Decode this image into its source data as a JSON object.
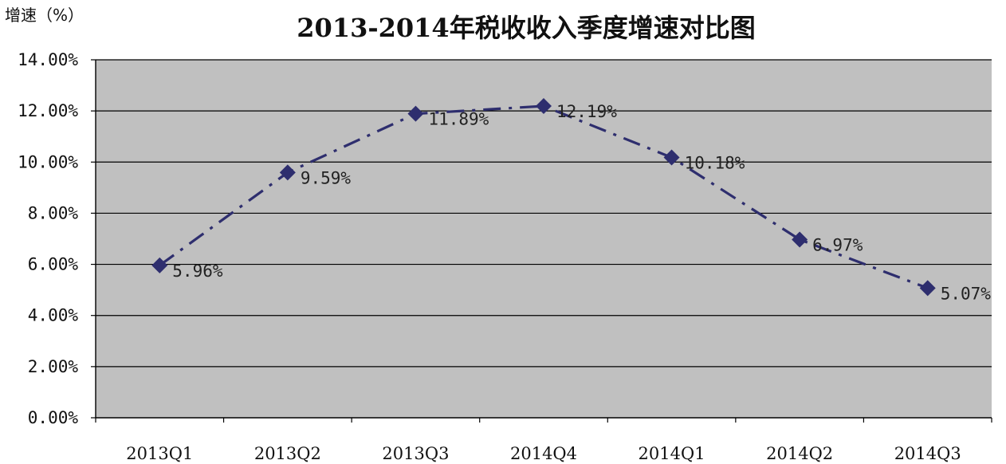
{
  "chart_data": {
    "type": "line",
    "title": "2013-2014年税收收入季度增速对比图",
    "ylabel": "增速（%）",
    "xlabel": "",
    "categories": [
      "2013Q1",
      "2013Q2",
      "2013Q3",
      "2014Q4",
      "2014Q1",
      "2014Q2",
      "2014Q3"
    ],
    "series": [
      {
        "values": [
          5.96,
          9.59,
          11.89,
          12.19,
          10.18,
          6.97,
          5.07
        ],
        "data_labels": [
          "5.96%",
          "9.59%",
          "11.89%",
          "12.19%",
          "10.18%",
          "6.97%",
          "5.07%"
        ]
      }
    ],
    "ylim": [
      0,
      14
    ],
    "yticks": [
      0,
      2,
      4,
      6,
      8,
      10,
      12,
      14
    ],
    "ytick_labels": [
      "0.00%",
      "2.00%",
      "4.00%",
      "6.00%",
      "8.00%",
      "10.00%",
      "12.00%",
      "14.00%"
    ],
    "grid": "horizontal",
    "legend": "none",
    "colors": {
      "plot_background": "#c0c0c0",
      "gridline": "#000000",
      "series": "#2e2e6e"
    },
    "marker": "diamond",
    "line_style": "dash-dot"
  }
}
